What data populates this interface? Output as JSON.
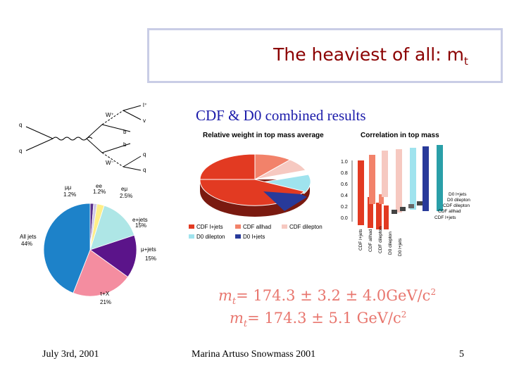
{
  "slide": {
    "title": "The heaviest of all: m",
    "title_sub": "t",
    "subtitle": "CDF & D0 combined results",
    "footer_date": "July 3rd, 2001",
    "footer_author": "Marina Artuso Snowmass 2001",
    "footer_page": "5"
  },
  "feynman": {
    "labels": [
      "l⁺",
      "W⁺",
      "q",
      "v",
      "b",
      "b",
      "q",
      "q",
      "W⁻",
      "q"
    ]
  },
  "pie_left": {
    "slices": [
      {
        "label": "μμ",
        "pct": "1.2%",
        "value": 1.2,
        "color": "#5a2e8c"
      },
      {
        "label": "ee",
        "pct": "1.2%",
        "value": 1.2,
        "color": "#cfc7e6"
      },
      {
        "label": "eμ",
        "pct": "2.5%",
        "value": 2.5,
        "color": "#ffee88"
      },
      {
        "label": "e+jets",
        "pct": "15%",
        "value": 15,
        "color": "#aee6e6"
      },
      {
        "label": "μ+jets",
        "pct": "15%",
        "value": 15,
        "color": "#5b148a"
      },
      {
        "label": "τ+X",
        "pct": "21%",
        "value": 21,
        "color": "#f48da0"
      },
      {
        "label": "All jets",
        "pct": "44%",
        "value": 44,
        "color": "#1d82c9"
      }
    ]
  },
  "pie3d": {
    "title": "Relative weight in top mass average",
    "legend": [
      {
        "label": "CDF l+jets",
        "color": "#e23a22"
      },
      {
        "label": "CDF allhad",
        "color": "#f2826a"
      },
      {
        "label": "CDF dilepton",
        "color": "#f6c9c1"
      },
      {
        "label": "D0 dilepton",
        "color": "#9fe3ee"
      },
      {
        "label": "D0 l+jets",
        "color": "#283a9a"
      }
    ]
  },
  "corr": {
    "title": "Correlation in top mass",
    "yticks": [
      "1.0",
      "0.8",
      "0.6",
      "0.4",
      "0.2",
      "0.0"
    ],
    "right_labels": [
      "D0 l+jets",
      "D0 dilepton",
      "CDF dilepton",
      "CDF allhad",
      "CDF l+jets"
    ],
    "bottom_labels": [
      "CDF l+jets",
      "CDF allhad",
      "CDF dilepton",
      "D0 dilepton",
      "D0 l+jets"
    ]
  },
  "formula": {
    "line1_pre": "m",
    "line1_sub": "t",
    "line1_post": "= 174.3 ± 3.2 ± 4.0GeV/c",
    "line1_sup": "2",
    "line2_pre": "m",
    "line2_sub": "t",
    "line2_post": "= 174.3 ± 5.1 GeV/c",
    "line2_sup": "2"
  }
}
